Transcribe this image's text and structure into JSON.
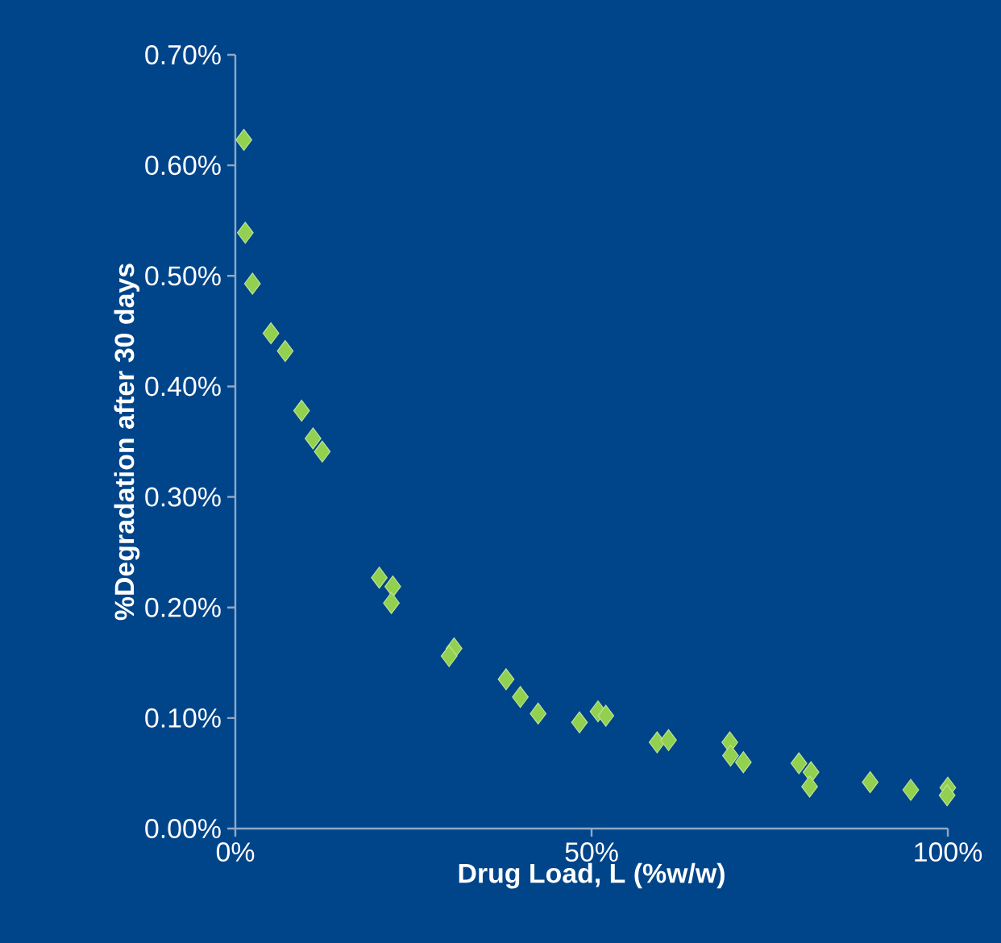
{
  "chart_data": {
    "type": "scatter",
    "xlabel": "Drug Load, L (%w/w)",
    "ylabel": "%Degradation  after 30 days",
    "x": [
      1.2,
      1.4,
      2.4,
      5.0,
      7.0,
      9.3,
      10.9,
      12.2,
      20.2,
      22.1,
      21.9,
      30.7,
      30.0,
      38.0,
      40.0,
      42.5,
      48.3,
      50.9,
      52.0,
      59.2,
      60.8,
      69.4,
      69.5,
      71.3,
      79.1,
      80.8,
      80.6,
      89.1,
      94.8,
      100,
      99.9
    ],
    "values": [
      0.623,
      0.539,
      0.493,
      0.448,
      0.432,
      0.378,
      0.353,
      0.341,
      0.227,
      0.219,
      0.204,
      0.163,
      0.156,
      0.135,
      0.119,
      0.104,
      0.096,
      0.106,
      0.102,
      0.078,
      0.08,
      0.078,
      0.066,
      0.06,
      0.059,
      0.051,
      0.038,
      0.042,
      0.035,
      0.037,
      0.03
    ],
    "color": "#92d050",
    "marker": "diamond",
    "xlim": [
      0,
      100
    ],
    "ylim": [
      0,
      0.7
    ],
    "xticks": [
      {
        "value": 0,
        "label": "0%"
      },
      {
        "value": 50,
        "label": "50%"
      },
      {
        "value": 100,
        "label": "100%"
      }
    ],
    "yticks": [
      {
        "value": 0,
        "label": "0.00%"
      },
      {
        "value": 0.1,
        "label": "0.10%"
      },
      {
        "value": 0.2,
        "label": "0.20%"
      },
      {
        "value": 0.3,
        "label": "0.30%"
      },
      {
        "value": 0.4,
        "label": "0.40%"
      },
      {
        "value": 0.5,
        "label": "0.50%"
      },
      {
        "value": 0.6,
        "label": "0.60%"
      },
      {
        "value": 0.7,
        "label": "0.70%"
      }
    ]
  }
}
